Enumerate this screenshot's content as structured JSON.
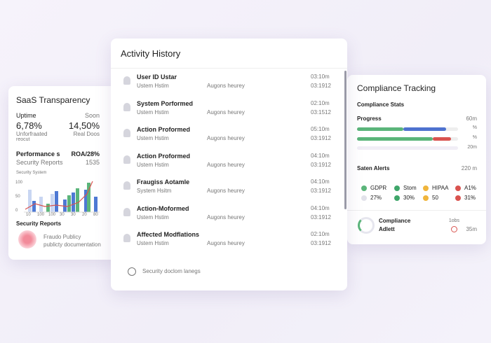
{
  "left": {
    "title": "SaaS Transparency",
    "uptime": "Uptime",
    "uptime_right": "Soon",
    "big_left": "6,78%",
    "big_right": "14,50%",
    "sub_left": "Unforfraated",
    "sub_right": "Real Doos",
    "sub_left2": "reocut",
    "performance": "Performance s",
    "performance_value": "ROA/28%",
    "security_reports_line": "Security Reports",
    "security_reports_value": "1535",
    "chart_title": "Security System",
    "y_labels": [
      "100",
      "50",
      "0"
    ],
    "x_labels": [
      "10",
      "100",
      "100",
      "30",
      "30",
      "20",
      "80"
    ],
    "reports_title": "Security Reports",
    "reports_line1": "Fraudo Publicy",
    "reports_line2": "publicty documentation"
  },
  "activity": {
    "title": "Activity History",
    "rows": [
      {
        "title": "User ID Ustar",
        "subtitle": "Ustem Hstim",
        "detail": "Augons heurey",
        "time": "03:10m",
        "date": "03:1912"
      },
      {
        "title": "System Porformed",
        "subtitle": "Ustem Hstim",
        "detail": "Augons heurey",
        "time": "02:10m",
        "date": "03:1512"
      },
      {
        "title": "Action Proformed",
        "subtitle": "Ustem Hstim",
        "detail": "Augons heurey",
        "time": "05:10m",
        "date": "03:1912"
      },
      {
        "title": "Action Proformed",
        "subtitle": "Ustem Hstim",
        "detail": "Augons heurey",
        "time": "04:10m",
        "date": "03:1912"
      },
      {
        "title": "Fraugiss Aotamle",
        "subtitle": "System Hsitm",
        "detail": "Augons heurey",
        "time": "04:10m",
        "date": "03:1912"
      },
      {
        "title": "Action-Moformed",
        "subtitle": "Ustem Hstim",
        "detail": "Augons heurey",
        "time": "04:10m",
        "date": "03:1912"
      },
      {
        "title": "Affected Modflations",
        "subtitle": "Ustem Hstim",
        "detail": "Augons heurey",
        "time": "02:10m",
        "date": "03:1912"
      }
    ],
    "footer": "Security doclom lanegs"
  },
  "compliance": {
    "title": "Compliance Tracking",
    "stats": "Compliance Stats",
    "progress": "Progress",
    "progress_value": "60m",
    "bar_labels": [
      "%",
      "%",
      "20m"
    ],
    "alerts": "Saten Alerts",
    "alerts_value": "220 m",
    "legend_top": [
      "GDPR",
      "Stom",
      "HIPAA",
      "A1%"
    ],
    "legend_bottom": [
      "27%",
      "30%",
      "50",
      "31%"
    ],
    "footer_title": "Compliance",
    "footer_sub": "Adlett",
    "footer_right1": "1obs",
    "footer_right2": "35m"
  }
}
